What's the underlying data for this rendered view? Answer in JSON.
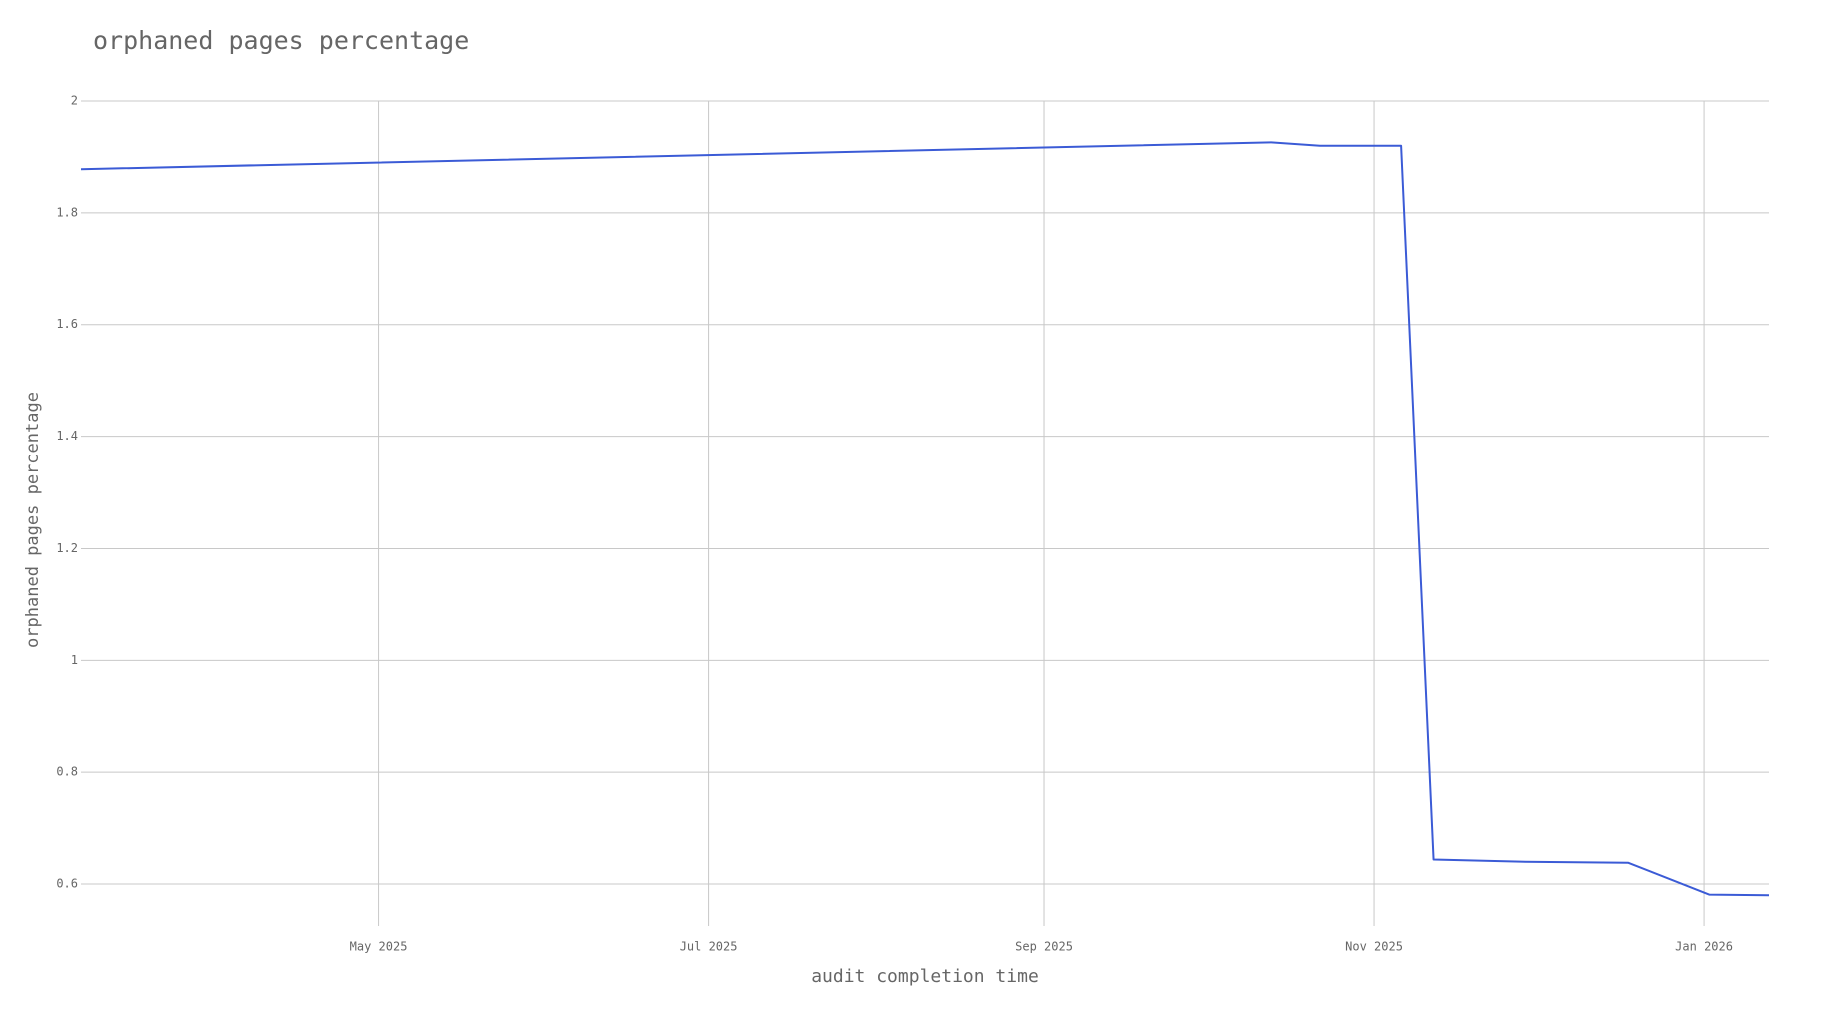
{
  "chart_data": {
    "type": "line",
    "title": "orphaned pages percentage",
    "x_label": "audit completion time",
    "y_label": "orphaned pages percentage",
    "x": [
      "2025-03-07",
      "2025-10-13",
      "2025-10-22",
      "2025-11-06",
      "2025-11-12",
      "2025-11-28",
      "2025-12-18",
      "2026-01-02",
      "2026-01-13"
    ],
    "series": [
      {
        "name": "orphaned pages percentage",
        "color": "#3b5bd6",
        "values": [
          1.878,
          1.926,
          1.92,
          1.92,
          0.644,
          0.64,
          0.638,
          0.581,
          0.58
        ]
      }
    ],
    "xlim": [
      "2025-03-07",
      "2026-01-13"
    ],
    "xticks": [
      {
        "value": "2025-05-01",
        "label": "May 2025"
      },
      {
        "value": "2025-07-01",
        "label": "Jul 2025"
      },
      {
        "value": "2025-09-01",
        "label": "Sep 2025"
      },
      {
        "value": "2025-11-01",
        "label": "Nov 2025"
      },
      {
        "value": "2026-01-01",
        "label": "Jan 2026"
      }
    ],
    "ylim": [
      0.525,
      2
    ],
    "yticks": [
      0.6,
      0.8,
      1,
      1.2,
      1.4,
      1.6,
      1.8,
      2
    ],
    "grid": true
  }
}
